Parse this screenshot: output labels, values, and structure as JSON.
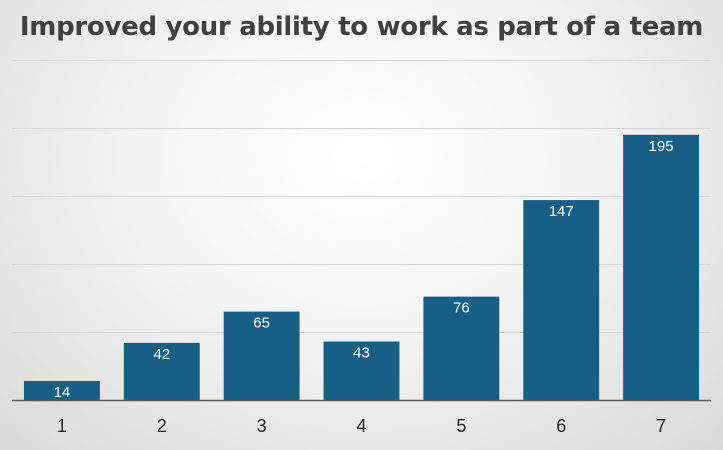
{
  "chart_data": {
    "type": "bar",
    "title": "Improved your ability to work as part of a team",
    "xlabel": "",
    "ylabel": "",
    "categories": [
      "1",
      "2",
      "3",
      "4",
      "5",
      "6",
      "7"
    ],
    "values": [
      14,
      42,
      65,
      43,
      76,
      147,
      195
    ],
    "ylim": [
      0,
      250
    ],
    "y_gridlines": [
      50,
      100,
      150,
      200,
      250
    ],
    "y_tick_labels_shown": false,
    "data_labels": true,
    "data_label_position": "inside-end",
    "grid": true,
    "legend": "none",
    "colors": {
      "bar": "#185f85",
      "data_label": "#ffffff",
      "gridline": "#d4d4d4",
      "axis": "#595959",
      "title": "#404040"
    }
  }
}
